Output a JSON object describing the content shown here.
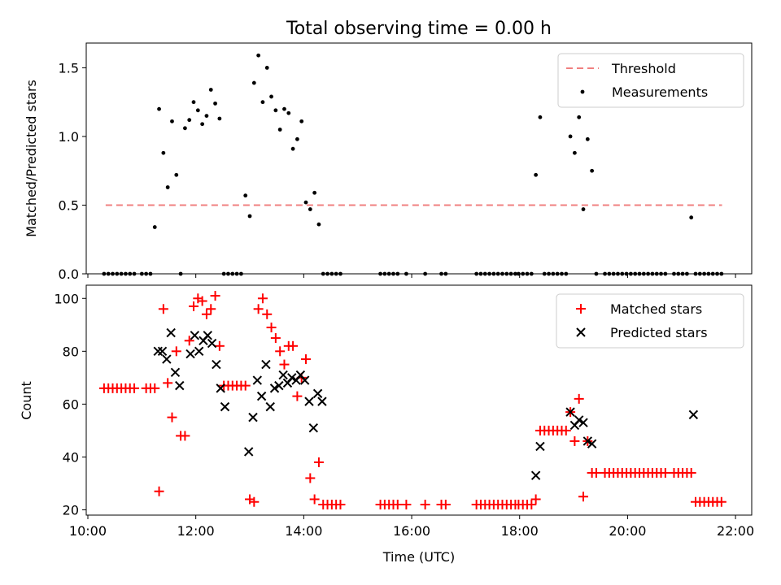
{
  "figure": {
    "title": "Total observing time = 0.00 h",
    "xlabel": "Time (UTC)",
    "x_tick_labels": [
      "10:00",
      "12:00",
      "14:00",
      "16:00",
      "18:00",
      "20:00",
      "22:00"
    ]
  },
  "chart_data": [
    {
      "type": "scatter",
      "ylabel": "Matched/Predicted stars",
      "xlim": [
        9.97,
        22.3
      ],
      "ylim": [
        0,
        1.68
      ],
      "y_ticks": [
        0,
        0.5,
        1.0,
        1.5
      ],
      "y_tick_labels": [
        "0.0",
        "0.5",
        "1.0",
        "1.5"
      ],
      "legend_position": "top-right",
      "threshold": {
        "name": "Threshold",
        "value": 0.5,
        "x_range": [
          10.33,
          21.75
        ],
        "color": "#f08080"
      },
      "series": [
        {
          "name": "Measurements",
          "color": "#000000",
          "x": [
            10.3,
            10.38,
            10.46,
            10.54,
            10.62,
            10.7,
            10.78,
            10.86,
            11.0,
            11.08,
            11.16,
            11.24,
            11.32,
            11.4,
            11.48,
            11.56,
            11.64,
            11.72,
            11.8,
            11.88,
            11.96,
            12.04,
            12.12,
            12.2,
            12.28,
            12.36,
            12.44,
            12.52,
            12.6,
            12.68,
            12.76,
            12.84,
            12.92,
            13.0,
            13.08,
            13.16,
            13.24,
            13.32,
            13.4,
            13.48,
            13.56,
            13.64,
            13.72,
            13.8,
            13.88,
            13.96,
            14.04,
            14.12,
            14.2,
            14.28,
            14.36,
            14.44,
            14.52,
            14.6,
            14.68,
            15.42,
            15.5,
            15.58,
            15.66,
            15.74,
            15.9,
            16.25,
            16.55,
            16.63,
            17.2,
            17.28,
            17.36,
            17.44,
            17.52,
            17.6,
            17.68,
            17.76,
            17.84,
            17.92,
            17.98,
            18.06,
            18.14,
            18.22,
            18.3,
            18.38,
            18.46,
            18.54,
            18.62,
            18.7,
            18.78,
            18.86,
            18.94,
            19.02,
            19.1,
            19.18,
            19.26,
            19.34,
            19.42,
            19.58,
            19.66,
            19.74,
            19.82,
            19.9,
            19.98,
            20.06,
            20.14,
            20.22,
            20.3,
            20.38,
            20.46,
            20.54,
            20.62,
            20.7,
            20.86,
            20.94,
            21.02,
            21.1,
            21.18,
            21.26,
            21.34,
            21.42,
            21.5,
            21.58,
            21.66,
            21.74
          ],
          "y": [
            0,
            0,
            0,
            0,
            0,
            0,
            0,
            0,
            0,
            0,
            0,
            0.34,
            1.2,
            0.88,
            0.63,
            1.11,
            0.72,
            0,
            1.06,
            1.12,
            1.25,
            1.19,
            1.09,
            1.15,
            1.34,
            1.24,
            1.13,
            0,
            0,
            0,
            0,
            0,
            0.57,
            0.42,
            1.39,
            1.59,
            1.25,
            1.5,
            1.29,
            1.19,
            1.05,
            1.2,
            1.17,
            0.91,
            0.98,
            1.11,
            0.52,
            0.47,
            0.59,
            0.36,
            0,
            0,
            0,
            0,
            0,
            0,
            0,
            0,
            0,
            0,
            0,
            0,
            0,
            0,
            0,
            0,
            0,
            0,
            0,
            0,
            0,
            0,
            0,
            0,
            0,
            0,
            0,
            0,
            0.72,
            1.14,
            0,
            0,
            0,
            0,
            0,
            0,
            1.0,
            0.88,
            1.14,
            0.47,
            0.98,
            0.75,
            0,
            0,
            0,
            0,
            0,
            0,
            0,
            0,
            0,
            0,
            0,
            0,
            0,
            0,
            0,
            0,
            0,
            0,
            0,
            0,
            0.41,
            0,
            0,
            0,
            0,
            0,
            0,
            0
          ]
        }
      ]
    },
    {
      "type": "scatter",
      "ylabel": "Count",
      "xlim": [
        9.97,
        22.3
      ],
      "ylim": [
        18,
        105
      ],
      "y_ticks": [
        20,
        40,
        60,
        80,
        100
      ],
      "y_tick_labels": [
        "20",
        "40",
        "60",
        "80",
        "100"
      ],
      "legend_position": "top-right",
      "series": [
        {
          "name": "Matched stars",
          "marker": "plus",
          "color": "#ff0000",
          "x": [
            10.3,
            10.38,
            10.46,
            10.54,
            10.62,
            10.7,
            10.78,
            10.86,
            11.08,
            11.16,
            11.24,
            11.32,
            11.4,
            11.48,
            11.56,
            11.64,
            11.72,
            11.8,
            11.88,
            11.96,
            12.04,
            12.12,
            12.2,
            12.28,
            12.36,
            12.44,
            12.52,
            12.6,
            12.68,
            12.76,
            12.84,
            12.92,
            13.0,
            13.08,
            13.16,
            13.24,
            13.32,
            13.4,
            13.48,
            13.56,
            13.64,
            13.72,
            13.8,
            13.88,
            13.96,
            14.04,
            14.12,
            14.2,
            14.28,
            14.36,
            14.44,
            14.52,
            14.6,
            14.68,
            15.42,
            15.5,
            15.58,
            15.66,
            15.74,
            15.9,
            16.25,
            16.55,
            16.63,
            17.2,
            17.28,
            17.36,
            17.44,
            17.52,
            17.6,
            17.68,
            17.76,
            17.84,
            17.92,
            17.98,
            18.06,
            18.14,
            18.22,
            18.3,
            18.38,
            18.46,
            18.54,
            18.62,
            18.7,
            18.78,
            18.86,
            18.94,
            19.02,
            19.1,
            19.18,
            19.26,
            19.34,
            19.42,
            19.58,
            19.66,
            19.74,
            19.82,
            19.9,
            19.98,
            20.06,
            20.14,
            20.22,
            20.3,
            20.38,
            20.46,
            20.54,
            20.62,
            20.7,
            20.86,
            20.94,
            21.02,
            21.1,
            21.18,
            21.26,
            21.34,
            21.42,
            21.5,
            21.58,
            21.66,
            21.74
          ],
          "y": [
            66,
            66,
            66,
            66,
            66,
            66,
            66,
            66,
            66,
            66,
            66,
            27,
            96,
            68,
            55,
            80,
            48,
            48,
            84,
            97,
            100,
            99,
            94,
            96,
            101,
            82,
            67,
            67,
            67,
            67,
            67,
            67,
            24,
            23,
            96,
            100,
            94,
            89,
            85,
            80,
            75,
            82,
            82,
            63,
            70,
            77,
            32,
            24,
            38,
            22,
            22,
            22,
            22,
            22,
            22,
            22,
            22,
            22,
            22,
            22,
            22,
            22,
            22,
            22,
            22,
            22,
            22,
            22,
            22,
            22,
            22,
            22,
            22,
            22,
            22,
            22,
            22,
            24,
            50,
            50,
            50,
            50,
            50,
            50,
            50,
            57,
            46,
            62,
            25,
            46,
            34,
            34,
            34,
            34,
            34,
            34,
            34,
            34,
            34,
            34,
            34,
            34,
            34,
            34,
            34,
            34,
            34,
            34,
            34,
            34,
            34,
            34,
            23,
            23,
            23,
            23,
            23,
            23,
            23
          ]
        },
        {
          "name": "Predicted stars",
          "marker": "x",
          "color": "#000000",
          "x": [
            11.3,
            11.38,
            11.46,
            11.54,
            11.62,
            11.7,
            11.9,
            11.98,
            12.06,
            12.14,
            12.22,
            12.3,
            12.38,
            12.46,
            12.54,
            12.98,
            13.06,
            13.14,
            13.22,
            13.3,
            13.38,
            13.46,
            13.54,
            13.62,
            13.7,
            13.78,
            13.86,
            13.94,
            14.02,
            14.1,
            14.18,
            14.26,
            14.34,
            18.3,
            18.38,
            18.94,
            19.02,
            19.1,
            19.18,
            19.26,
            19.34,
            21.22
          ],
          "y": [
            80,
            80,
            77,
            87,
            72,
            67,
            79,
            86,
            80,
            84,
            86,
            83,
            75,
            66,
            59,
            42,
            55,
            69,
            63,
            75,
            59,
            66,
            67,
            71,
            68,
            70,
            69,
            71,
            69,
            61,
            51,
            64,
            61,
            33,
            44,
            57,
            52,
            54,
            53,
            46,
            45,
            56
          ]
        }
      ]
    }
  ]
}
